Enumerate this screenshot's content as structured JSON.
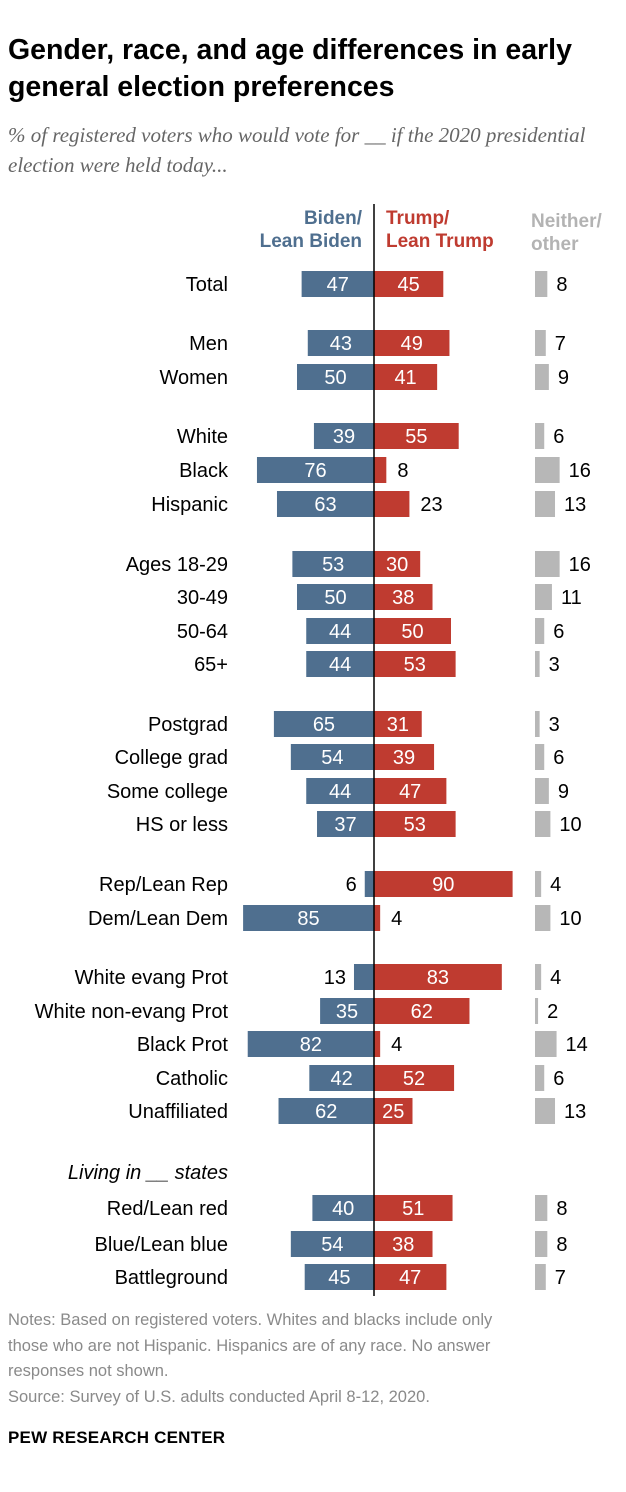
{
  "title": "Gender, race, and age differences in early general election preferences",
  "subtitle": "% of registered voters who would vote for __ if the 2020 presidential election were held today...",
  "notes": [
    "Notes: Based on registered voters. Whites and blacks include only",
    "those who are not Hispanic. Hispanics are of any race. No answer",
    "responses not shown."
  ],
  "source": "Source: Survey of U.S. adults conducted April 8-12, 2020.",
  "brand": "PEW RESEARCH CENTER",
  "colors": {
    "biden": "#4f6f8f",
    "trump": "#bf3b30",
    "neither": "#b7b7b7",
    "headerNeither": "#b3b3b3"
  },
  "chart_data": {
    "type": "bar",
    "headers": {
      "biden": [
        "Biden/",
        "Lean Biden"
      ],
      "trump": [
        "Trump/",
        "Lean Trump"
      ],
      "neither": [
        "Neither/",
        "other"
      ]
    },
    "series": [
      {
        "name": "Biden/Lean Biden",
        "key": "biden"
      },
      {
        "name": "Trump/Lean Trump",
        "key": "trump"
      },
      {
        "name": "Neither/other",
        "key": "neither"
      }
    ],
    "group_label": "Living in __ states",
    "rows": [
      {
        "label": "Total",
        "biden": 47,
        "trump": 45,
        "neither": 8
      },
      {
        "label": "Men",
        "biden": 43,
        "trump": 49,
        "neither": 7
      },
      {
        "label": "Women",
        "biden": 50,
        "trump": 41,
        "neither": 9
      },
      {
        "label": "White",
        "biden": 39,
        "trump": 55,
        "neither": 6
      },
      {
        "label": "Black",
        "biden": 76,
        "trump": 8,
        "neither": 16
      },
      {
        "label": "Hispanic",
        "biden": 63,
        "trump": 23,
        "neither": 13
      },
      {
        "label": "Ages 18-29",
        "biden": 53,
        "trump": 30,
        "neither": 16
      },
      {
        "label": "30-49",
        "biden": 50,
        "trump": 38,
        "neither": 11
      },
      {
        "label": "50-64",
        "biden": 44,
        "trump": 50,
        "neither": 6
      },
      {
        "label": "65+",
        "biden": 44,
        "trump": 53,
        "neither": 3
      },
      {
        "label": "Postgrad",
        "biden": 65,
        "trump": 31,
        "neither": 3
      },
      {
        "label": "College grad",
        "biden": 54,
        "trump": 39,
        "neither": 6
      },
      {
        "label": "Some college",
        "biden": 44,
        "trump": 47,
        "neither": 9
      },
      {
        "label": "HS or less",
        "biden": 37,
        "trump": 53,
        "neither": 10
      },
      {
        "label": "Rep/Lean Rep",
        "biden": 6,
        "trump": 90,
        "neither": 4
      },
      {
        "label": "Dem/Lean Dem",
        "biden": 85,
        "trump": 4,
        "neither": 10
      },
      {
        "label": "White evang Prot",
        "biden": 13,
        "trump": 83,
        "neither": 4
      },
      {
        "label": "White non-evang Prot",
        "biden": 35,
        "trump": 62,
        "neither": 2
      },
      {
        "label": "Black Prot",
        "biden": 82,
        "trump": 4,
        "neither": 14
      },
      {
        "label": "Catholic",
        "biden": 42,
        "trump": 52,
        "neither": 6
      },
      {
        "label": "Unaffiliated",
        "biden": 62,
        "trump": 25,
        "neither": 13
      },
      {
        "label": "Red/Lean red",
        "biden": 40,
        "trump": 51,
        "neither": 8
      },
      {
        "label": "Blue/Lean blue",
        "biden": 54,
        "trump": 38,
        "neither": 8
      },
      {
        "label": "Battleground",
        "biden": 45,
        "trump": 47,
        "neither": 7
      }
    ]
  }
}
